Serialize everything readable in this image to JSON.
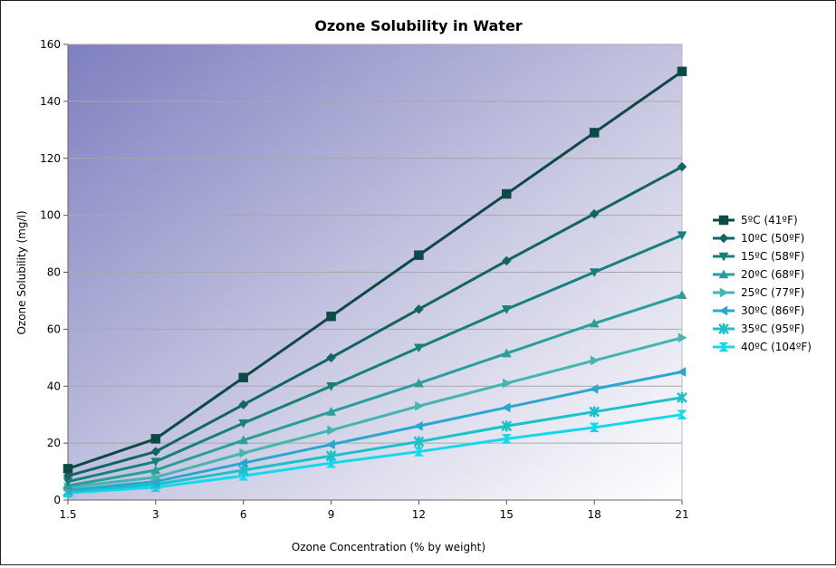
{
  "chart_data": {
    "type": "line",
    "title": "Ozone Solubility in Water",
    "xlabel": "Ozone Concentration (% by weight)",
    "ylabel": "Ozone Solubility (mg/l)",
    "x": [
      "1.5",
      "3",
      "6",
      "9",
      "12",
      "15",
      "18",
      "21"
    ],
    "ylim": [
      0,
      160
    ],
    "yticks": [
      0,
      20,
      40,
      60,
      80,
      100,
      120,
      140,
      160
    ],
    "grid": true,
    "legend_position": "right",
    "series": [
      {
        "name": "5ºC (41ºF)",
        "color": "#0c4a47",
        "marker": "square",
        "values": [
          11,
          21.5,
          43,
          64.5,
          86,
          107.5,
          129,
          150.5
        ]
      },
      {
        "name": "10ºC (50ºF)",
        "color": "#0f6663",
        "marker": "diamond",
        "values": [
          8.5,
          17,
          33.5,
          50,
          67,
          84,
          100.5,
          117
        ]
      },
      {
        "name": "15ºC (58ºF)",
        "color": "#16807b",
        "marker": "triangle-down",
        "values": [
          6.5,
          13.5,
          27,
          40,
          53.5,
          67,
          80,
          93
        ]
      },
      {
        "name": "20ºC (68ºF)",
        "color": "#2a9f9a",
        "marker": "triangle-up",
        "values": [
          5,
          10.5,
          21,
          31,
          41,
          51.5,
          62,
          72
        ]
      },
      {
        "name": "25ºC (77ºF)",
        "color": "#44b5b0",
        "marker": "triangle-right",
        "values": [
          4.5,
          8,
          16.5,
          24.5,
          33,
          41,
          49,
          57
        ]
      },
      {
        "name": "30ºC (86ºF)",
        "color": "#2aa7d0",
        "marker": "triangle-left",
        "values": [
          3.5,
          6.5,
          13,
          19.5,
          26,
          32.5,
          39,
          45
        ]
      },
      {
        "name": "35ºC (95ºF)",
        "color": "#19c2c9",
        "marker": "star",
        "values": [
          3,
          5.5,
          10.5,
          15.5,
          20.5,
          26,
          31,
          36
        ]
      },
      {
        "name": "40ºC (104ºF)",
        "color": "#14d8ee",
        "marker": "hourglass",
        "values": [
          2.5,
          4.5,
          8.5,
          13,
          17,
          21.5,
          25.5,
          30
        ]
      }
    ],
    "plot_background": {
      "top_left": "#7e7fbf",
      "bottom_right": "#ffffff"
    }
  }
}
